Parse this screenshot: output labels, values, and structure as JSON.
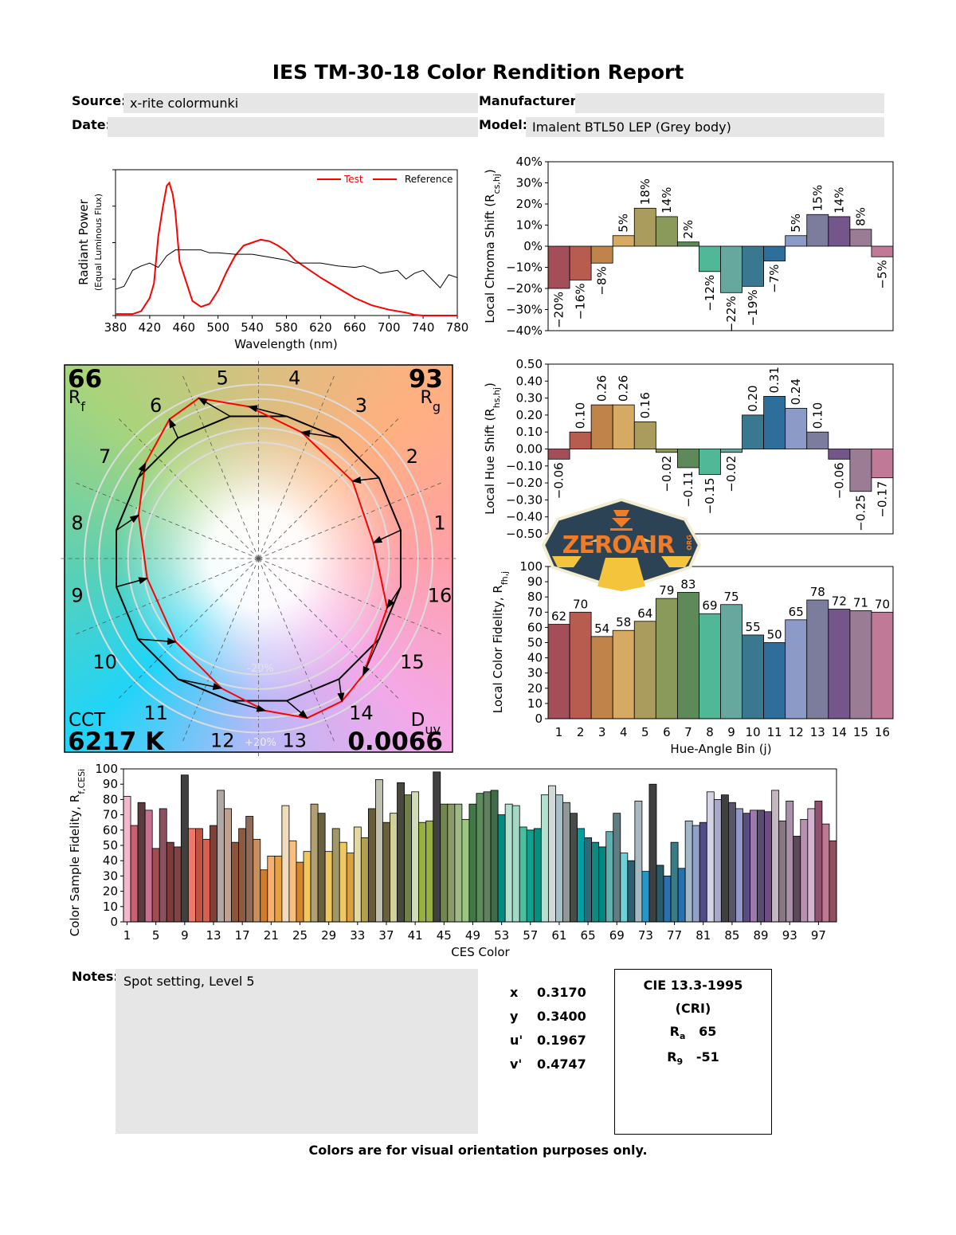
{
  "report": {
    "title": "IES TM-30-18 Color Rendition Report",
    "source_label": "Source:",
    "source_value": "x-rite colormunki",
    "manufacturer_label": "Manufacturer:",
    "manufacturer_value": "",
    "date_label": "Date:",
    "date_value": "",
    "model_label": "Model:",
    "model_value": "Imalent BTL50 LEP (Grey body)",
    "notes_label": "Notes:",
    "notes_value": "Spot setting, Level 5",
    "footer": "Colors are for visual orientation purposes only."
  },
  "chromaticity": {
    "rows": [
      {
        "label": "x",
        "value": "0.3170"
      },
      {
        "label": "y",
        "value": "0.3400"
      },
      {
        "label": "u'",
        "value": "0.1967"
      },
      {
        "label": "v'",
        "value": "0.4747"
      }
    ]
  },
  "cri": {
    "title": "CIE 13.3-1995",
    "subtitle": "(CRI)",
    "ra_label": "R",
    "ra_sub": "a",
    "ra_value": "65",
    "r9_label": "R",
    "r9_sub": "9",
    "r9_value": "-51"
  },
  "logo": {
    "text": "ZEROAIR",
    "suffix": "ORG",
    "colors": {
      "bg": "#2c4255",
      "text": "#f07c28",
      "accent": "#f4c43c",
      "border": "#f4ecd0"
    }
  },
  "vector_graphic": {
    "rf_value": "66",
    "rf_label": "R",
    "rf_sub": "f",
    "rg_value": "93",
    "rg_label": "R",
    "rg_sub": "g",
    "cct_label": "CCT",
    "cct_value": "6217 K",
    "duv_label": "D",
    "duv_sub": "uv",
    "duv_value": "0.0066",
    "ring_minus_label": "-20%",
    "ring_plus_label": "+20%",
    "bin_labels": [
      "1",
      "2",
      "3",
      "4",
      "5",
      "6",
      "7",
      "8",
      "9",
      "10",
      "11",
      "12",
      "13",
      "14",
      "15",
      "16"
    ]
  },
  "chart_data": [
    {
      "type": "line",
      "xlabel": "Wavelength (nm)",
      "ylabel": "Radiant Power",
      "ylabel2": "(Equal Luminous Flux)",
      "xlim": [
        380,
        780
      ],
      "xticks": [
        380,
        420,
        460,
        500,
        540,
        580,
        620,
        660,
        700,
        740,
        780
      ],
      "legend": "top-right",
      "series": [
        {
          "name": "Test",
          "color": "#ff0000",
          "x": [
            380,
            400,
            410,
            420,
            425,
            430,
            435,
            440,
            443,
            447,
            450,
            455,
            460,
            470,
            480,
            490,
            500,
            510,
            520,
            530,
            540,
            550,
            560,
            570,
            580,
            590,
            600,
            620,
            640,
            660,
            680,
            700,
            720,
            730,
            740,
            780
          ],
          "y": [
            0.01,
            0.01,
            0.03,
            0.12,
            0.22,
            0.54,
            0.73,
            0.89,
            0.91,
            0.83,
            0.71,
            0.37,
            0.28,
            0.1,
            0.06,
            0.08,
            0.17,
            0.3,
            0.41,
            0.48,
            0.5,
            0.52,
            0.51,
            0.48,
            0.44,
            0.38,
            0.34,
            0.26,
            0.19,
            0.12,
            0.07,
            0.04,
            0.02,
            0.005,
            0,
            0
          ]
        },
        {
          "name": "Reference",
          "color": "#000000",
          "x": [
            380,
            390,
            400,
            410,
            420,
            430,
            440,
            450,
            460,
            470,
            480,
            490,
            500,
            520,
            540,
            560,
            580,
            590,
            600,
            620,
            640,
            660,
            670,
            680,
            690,
            700,
            710,
            720,
            730,
            740,
            750,
            760,
            770,
            780
          ],
          "y": [
            0.18,
            0.2,
            0.31,
            0.34,
            0.36,
            0.33,
            0.41,
            0.45,
            0.45,
            0.45,
            0.45,
            0.43,
            0.43,
            0.42,
            0.42,
            0.4,
            0.38,
            0.36,
            0.36,
            0.36,
            0.34,
            0.33,
            0.34,
            0.32,
            0.29,
            0.3,
            0.31,
            0.25,
            0.29,
            0.31,
            0.25,
            0.19,
            0.28,
            0.26
          ]
        }
      ]
    },
    {
      "type": "bar",
      "ylabel": "Local Chroma Shift (R",
      "ylabel_sub": "cs,hj",
      "ylabel_end": ")",
      "ylim": [
        -40,
        40
      ],
      "yticks": [
        40,
        30,
        20,
        10,
        0,
        -10,
        -20,
        -30,
        -40
      ],
      "unit": "%",
      "categories": [
        "1",
        "2",
        "3",
        "4",
        "5",
        "6",
        "7",
        "8",
        "9",
        "10",
        "11",
        "12",
        "13",
        "14",
        "15",
        "16"
      ],
      "values": [
        -20,
        -16,
        -8,
        5,
        18,
        14,
        2,
        -12,
        -22,
        -19,
        -7,
        5,
        15,
        14,
        8,
        -5
      ]
    },
    {
      "type": "bar",
      "ylabel": "Local Hue Shift (R",
      "ylabel_sub": "hs,hj",
      "ylabel_end": ")",
      "ylim": [
        -0.5,
        0.5
      ],
      "yticks": [
        0.5,
        0.4,
        0.3,
        0.2,
        0.1,
        0,
        -0.1,
        -0.2,
        -0.3,
        -0.4,
        -0.5
      ],
      "categories": [
        "1",
        "2",
        "3",
        "4",
        "5",
        "6",
        "7",
        "8",
        "9",
        "10",
        "11",
        "12",
        "13",
        "14",
        "15",
        "16"
      ],
      "values": [
        -0.06,
        0.1,
        0.26,
        0.26,
        0.16,
        -0.02,
        -0.11,
        -0.15,
        -0.02,
        0.2,
        0.31,
        0.24,
        0.1,
        -0.06,
        -0.25,
        -0.17
      ]
    },
    {
      "type": "bar",
      "ylabel": "Local Color Fidelity, R",
      "ylabel_sub": "fh,j",
      "xlabel": "Hue-Angle Bin (j)",
      "ylim": [
        0,
        100
      ],
      "yticks": [
        100,
        90,
        80,
        70,
        60,
        50,
        40,
        30,
        20,
        10,
        0
      ],
      "categories": [
        "1",
        "2",
        "3",
        "4",
        "5",
        "6",
        "7",
        "8",
        "9",
        "10",
        "11",
        "12",
        "13",
        "14",
        "15",
        "16"
      ],
      "values": [
        62,
        70,
        54,
        58,
        64,
        79,
        83,
        69,
        75,
        55,
        50,
        65,
        78,
        72,
        71,
        70
      ],
      "colors": [
        "#a34e58",
        "#b85c50",
        "#c0844a",
        "#d6aa62",
        "#a99c5c",
        "#8a9a5b",
        "#5e8a5a",
        "#50b896",
        "#66a89e",
        "#3a7890",
        "#2e6e9a",
        "#8c9ac8",
        "#7c7c9c",
        "#74568a",
        "#9a7c94",
        "#c07a98"
      ]
    },
    {
      "type": "bar",
      "ylabel": "Color Sample Fidelity, R",
      "ylabel_sub": "f,CESi",
      "xlabel": "CES Color",
      "ylim": [
        0,
        100
      ],
      "yticks": [
        100,
        90,
        80,
        70,
        60,
        50,
        40,
        30,
        20,
        10,
        0
      ],
      "xticks": [
        1,
        5,
        9,
        13,
        17,
        21,
        25,
        29,
        33,
        37,
        41,
        45,
        49,
        53,
        57,
        61,
        65,
        69,
        73,
        77,
        81,
        85,
        89,
        93,
        97
      ],
      "values": [
        82,
        63,
        78,
        73,
        48,
        74,
        52,
        49,
        96,
        61,
        61,
        54,
        63,
        86,
        74,
        52,
        61,
        69,
        54,
        34,
        43,
        43,
        76,
        53,
        39,
        46,
        77,
        71,
        46,
        61,
        52,
        45,
        62,
        55,
        74,
        93,
        65,
        71,
        91,
        83,
        85,
        65,
        66,
        98,
        77,
        77,
        77,
        67,
        77,
        84,
        85,
        86,
        70,
        77,
        76,
        62,
        60,
        61,
        83,
        89,
        83,
        78,
        71,
        61,
        55,
        52,
        49,
        59,
        71,
        45,
        40,
        79,
        33,
        90,
        37,
        30,
        52,
        35,
        66,
        63,
        65,
        85,
        80,
        83,
        78,
        74,
        71,
        73,
        73,
        72,
        86,
        66,
        79,
        56,
        67,
        74,
        79,
        64,
        53
      ],
      "colors": [
        "#f2b8cc",
        "#c86070",
        "#5a3c3e",
        "#c87090",
        "#a04c50",
        "#8c5060",
        "#7c3c3c",
        "#804444",
        "#404040",
        "#f07868",
        "#c05444",
        "#d86050",
        "#804038",
        "#b0a8a4",
        "#c0a090",
        "#8c5438",
        "#8c5a40",
        "#906c58",
        "#c89060",
        "#d07c2c",
        "#f8b070",
        "#e8a040",
        "#f0dcbc",
        "#f8c080",
        "#d8842c",
        "#f0c860",
        "#b0a070",
        "#686040",
        "#f0c860",
        "#a09868",
        "#f0c860",
        "#d8a040",
        "#e4d8a0",
        "#b0a050",
        "#685c38",
        "#c0c0b0",
        "#686038",
        "#d0d098",
        "#484840",
        "#708048",
        "#d0dcb8",
        "#98b040",
        "#98b040",
        "#404040",
        "#708850",
        "#8c9c68",
        "#a0b888",
        "#98c880",
        "#407848",
        "#5c8c5c",
        "#608060",
        "#3e6c48",
        "#008c80",
        "#b4e0d0",
        "#a4d8c4",
        "#48c0a0",
        "#10a090",
        "#009080",
        "#b4e0d0",
        "#d0d8d8",
        "#a8c0c8",
        "#909898",
        "#484c48",
        "#00a0a0",
        "#306878",
        "#108880",
        "#008880",
        "#60b0b0",
        "#607c80",
        "#70d0d8",
        "#2c6070",
        "#a8b8c0",
        "#2498c8",
        "#404040",
        "#285c68",
        "#2870b0",
        "#387c88",
        "#2870b0",
        "#a0b8c8",
        "#90a0c8",
        "#504c88",
        "#d4d4e4",
        "#a8a8c8",
        "#404040",
        "#585468",
        "#9498c8",
        "#584c80",
        "#a078b0",
        "#584c70",
        "#704c84",
        "#c4b8c0",
        "#887884",
        "#a890a8",
        "#5c4858",
        "#b890b0",
        "#d4b4d0",
        "#905070",
        "#c07890",
        "#905060"
      ]
    }
  ]
}
